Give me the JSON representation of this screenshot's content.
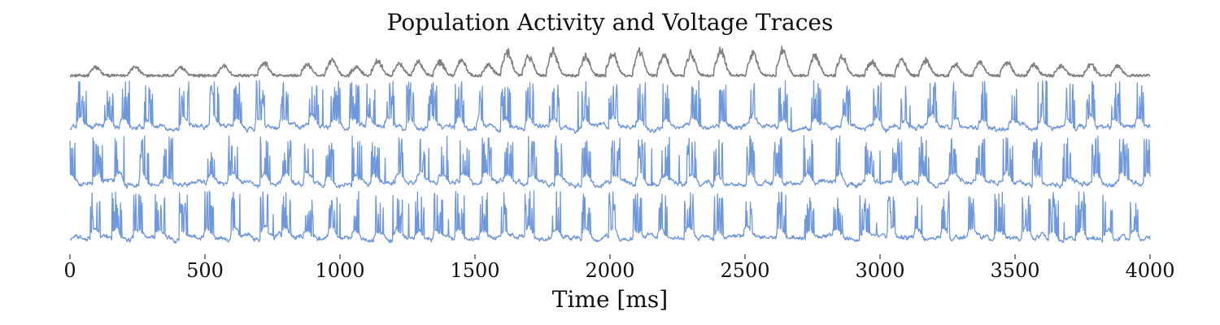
{
  "chart_data": {
    "type": "line",
    "title": "Population Activity and Voltage Traces",
    "xlabel": "Time [ms]",
    "ylabel": "",
    "xlim": [
      0,
      4000
    ],
    "x_ticks": [
      0,
      500,
      1000,
      1500,
      2000,
      2500,
      3000,
      3500,
      4000
    ],
    "grid": false,
    "y_axis_visible": false,
    "colors": {
      "population": "#808080",
      "voltage": "#6f97dc"
    },
    "series": [
      {
        "role": "population",
        "burst_centers_ms": [
          95,
          240,
          410,
          570,
          720,
          880,
          970,
          1060,
          1140,
          1220,
          1290,
          1370,
          1450,
          1550,
          1620,
          1700,
          1790,
          1910,
          2010,
          2110,
          2200,
          2300,
          2410,
          2530,
          2640,
          2760,
          2860,
          2970,
          3080,
          3170,
          3280,
          3370,
          3470,
          3570,
          3670,
          3780,
          3880
        ],
        "burst_heights": [
          0.3,
          0.35,
          0.3,
          0.35,
          0.45,
          0.4,
          0.55,
          0.3,
          0.55,
          0.45,
          0.5,
          0.5,
          0.55,
          0.4,
          0.85,
          0.7,
          0.85,
          0.7,
          0.85,
          0.85,
          0.75,
          0.8,
          0.9,
          0.8,
          0.9,
          0.75,
          0.7,
          0.55,
          0.6,
          0.55,
          0.4,
          0.5,
          0.5,
          0.4,
          0.35,
          0.4,
          0.35
        ]
      },
      {
        "role": "voltage",
        "burst_centers_ms": [
          40,
          140,
          200,
          290,
          420,
          530,
          620,
          700,
          790,
          900,
          980,
          1050,
          1110,
          1180,
          1260,
          1340,
          1440,
          1520,
          1610,
          1700,
          1790,
          1910,
          2010,
          2110,
          2210,
          2310,
          2420,
          2530,
          2640,
          2760,
          2870,
          2990,
          3090,
          3190,
          3280,
          3380,
          3490,
          3600,
          3700,
          3780,
          3870,
          3960
        ]
      },
      {
        "role": "voltage",
        "burst_centers_ms": [
          0,
          100,
          180,
          270,
          360,
          520,
          600,
          720,
          800,
          880,
          960,
          1060,
          1130,
          1220,
          1300,
          1380,
          1460,
          1540,
          1620,
          1710,
          1810,
          1910,
          2020,
          2110,
          2200,
          2300,
          2400,
          2520,
          2620,
          2730,
          2850,
          2960,
          3060,
          3160,
          3270,
          3370,
          3470,
          3580,
          3690,
          3800,
          3900,
          3990
        ]
      },
      {
        "role": "voltage",
        "burst_centers_ms": [
          90,
          170,
          250,
          330,
          420,
          510,
          610,
          720,
          800,
          880,
          970,
          1060,
          1140,
          1210,
          1290,
          1360,
          1440,
          1530,
          1610,
          1700,
          1800,
          1910,
          2010,
          2100,
          2190,
          2290,
          2400,
          2510,
          2630,
          2740,
          2840,
          2940,
          3040,
          3140,
          3240,
          3340,
          3440,
          3540,
          3640,
          3740,
          3840,
          3940
        ]
      }
    ]
  }
}
